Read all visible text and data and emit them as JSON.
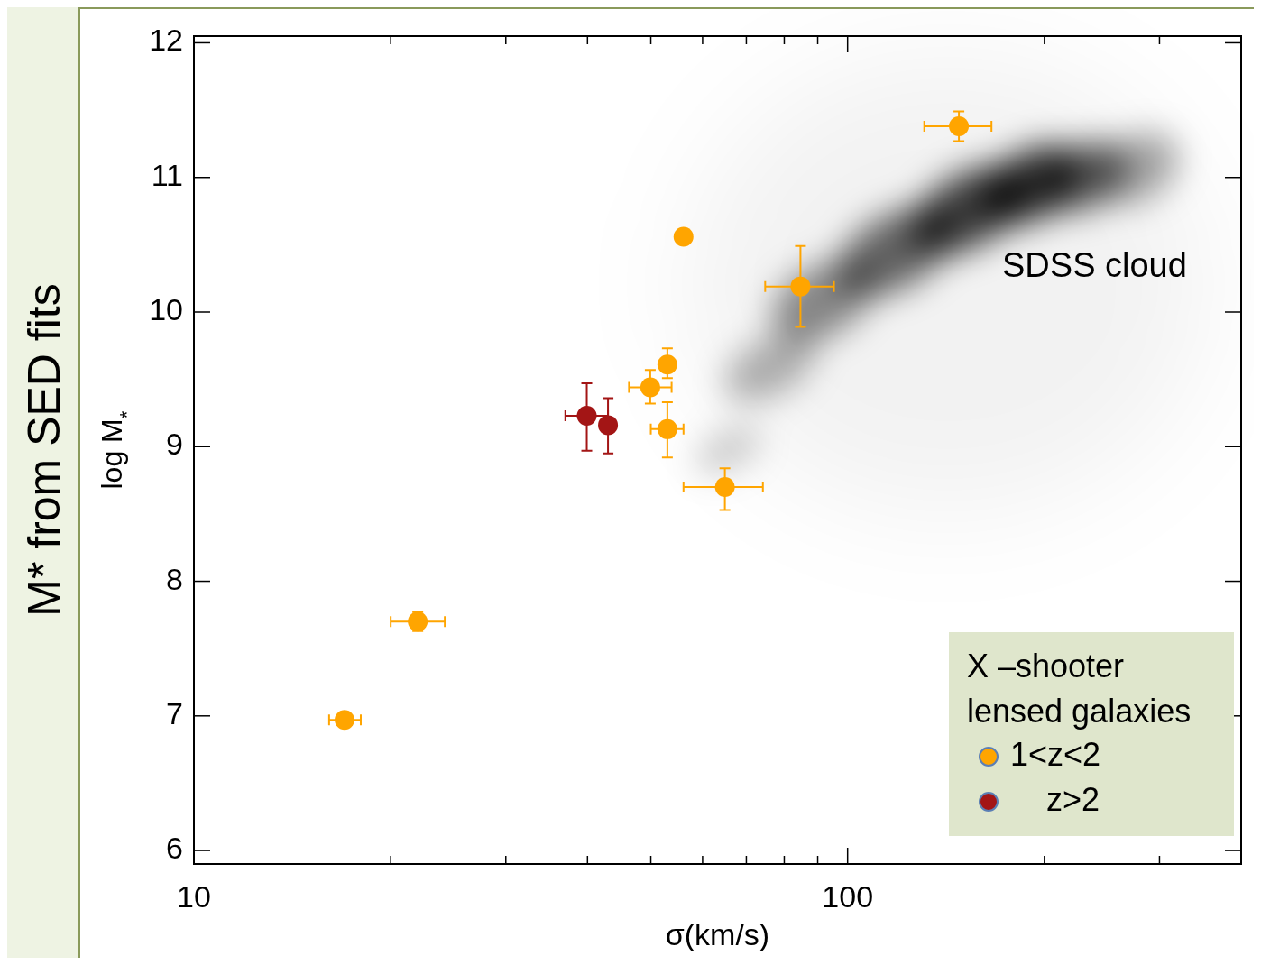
{
  "chart_data": {
    "type": "scatter",
    "xlabel": "σ(km/s)",
    "ylabel": "log M$_{*}$",
    "log": "x",
    "xlim": [
      10,
      400
    ],
    "ylim": [
      5.9,
      12.05
    ],
    "xticks": [
      10,
      {
        "value": 20,
        "label": null
      },
      {
        "value": 30,
        "label": null
      },
      {
        "value": 40,
        "label": null
      },
      {
        "value": 50,
        "label": null
      },
      {
        "value": 60,
        "label": null
      },
      {
        "value": 70,
        "label": null
      },
      {
        "value": 80,
        "label": null
      },
      {
        "value": 90,
        "label": null
      },
      100,
      {
        "value": 200,
        "label": null
      },
      {
        "value": 300,
        "label": null
      },
      {
        "value": 400,
        "label": null
      }
    ],
    "yticks": [
      6,
      7,
      8,
      9,
      10,
      11,
      12
    ],
    "grid": false,
    "marker": "circle",
    "legend": "bottom right",
    "legend_title": "X –shooter lensed galaxies",
    "annotations": [
      "M* from SED fits",
      "SDSS cloud"
    ],
    "series": [
      {
        "name": "1<z<2",
        "color": "#ffa500",
        "x": [
          17.0,
          22.0,
          49.9,
          53.0,
          53.0,
          56.1,
          64.9,
          84.7,
          148
        ],
        "values": [
          6.97,
          7.7,
          9.44,
          9.61,
          9.13,
          10.56,
          8.7,
          10.19,
          11.38
        ],
        "xerrors": [
          [
            16.1,
            18.0
          ],
          [
            20.0,
            24.2
          ],
          [
            46.3,
            53.8
          ],
          null,
          [
            50.0,
            56.1
          ],
          null,
          [
            56.1,
            74.2
          ],
          [
            74.8,
            95.3
          ],
          [
            131,
            166
          ]
        ],
        "errors": [
          null,
          [
            7.63,
            7.77
          ],
          [
            9.32,
            9.57
          ],
          [
            9.51,
            9.73
          ],
          [
            8.92,
            9.33
          ],
          null,
          [
            8.53,
            8.84
          ],
          [
            9.89,
            10.49
          ],
          [
            11.27,
            11.49
          ]
        ]
      },
      {
        "name": "z>2",
        "color": "#a31515",
        "x": [
          39.9,
          43.0
        ],
        "values": [
          9.23,
          9.16
        ],
        "xerrors": [
          [
            37.0,
            43.0
          ],
          null
        ],
        "errors": [
          [
            8.97,
            9.47
          ],
          [
            8.95,
            9.36
          ]
        ]
      }
    ]
  }
}
